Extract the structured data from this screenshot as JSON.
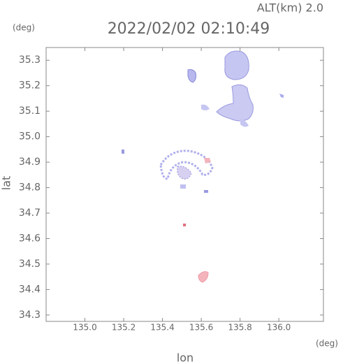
{
  "chart_data": {
    "type": "map",
    "title": "2022/02/02 02:10:49",
    "subtitle": "ALT(km) 2.0",
    "xlabel": "lon",
    "ylabel": "lat",
    "x_unit": "(deg)",
    "y_unit": "(deg)",
    "xlim": [
      134.8,
      136.23
    ],
    "ylim": [
      34.275,
      35.35
    ],
    "xticks": [
      {
        "value": 135,
        "label": "135.0"
      },
      135.2,
      135.4,
      135.6,
      135.8,
      {
        "value": 136,
        "label": "136.0"
      }
    ],
    "yticks": [
      34.3,
      34.4,
      34.5,
      34.6,
      34.7,
      34.8,
      34.9,
      {
        "value": 35,
        "label": "35.0"
      },
      35.1,
      35.2,
      35.3
    ],
    "frame_color": "#888888"
  }
}
